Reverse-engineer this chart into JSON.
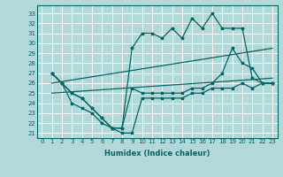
{
  "xlabel": "Humidex (Indice chaleur)",
  "bg_color": "#b2d8d8",
  "grid_color": "#ffffff",
  "line_color": "#006666",
  "xlim": [
    -0.5,
    23.5
  ],
  "ylim": [
    20.5,
    33.8
  ],
  "xticks": [
    0,
    1,
    2,
    3,
    4,
    5,
    6,
    7,
    8,
    9,
    10,
    11,
    12,
    13,
    14,
    15,
    16,
    17,
    18,
    19,
    20,
    21,
    22,
    23
  ],
  "yticks": [
    21,
    22,
    23,
    24,
    25,
    26,
    27,
    28,
    29,
    30,
    31,
    32,
    33
  ],
  "x": [
    1,
    2,
    3,
    4,
    5,
    6,
    7,
    8,
    9,
    10,
    11,
    12,
    13,
    14,
    15,
    16,
    17,
    18,
    19,
    20,
    21,
    22,
    23
  ],
  "y_top": [
    27,
    26,
    25,
    24.5,
    23.5,
    22.5,
    21.5,
    21.5,
    29.5,
    31,
    31,
    30.5,
    31.5,
    30.5,
    32.5,
    31.5,
    33,
    31.5,
    31.5,
    31.5,
    26.5,
    26,
    26
  ],
  "y_mid": [
    27,
    26,
    25,
    24.5,
    23.5,
    22.5,
    21.5,
    21.5,
    25.5,
    25,
    25,
    25,
    25,
    25,
    25.5,
    25.5,
    26,
    27,
    29.5,
    28,
    27.5,
    26,
    26
  ],
  "y_bot": [
    27,
    26,
    24,
    23.5,
    23,
    22,
    21.5,
    21,
    21,
    24.5,
    24.5,
    24.5,
    24.5,
    24.5,
    25,
    25,
    25.5,
    25.5,
    25.5,
    26,
    25.5,
    26,
    26
  ],
  "trend1_x": [
    1,
    23
  ],
  "trend1_y": [
    26.0,
    29.5
  ],
  "trend2_x": [
    1,
    23
  ],
  "trend2_y": [
    25.0,
    26.5
  ]
}
